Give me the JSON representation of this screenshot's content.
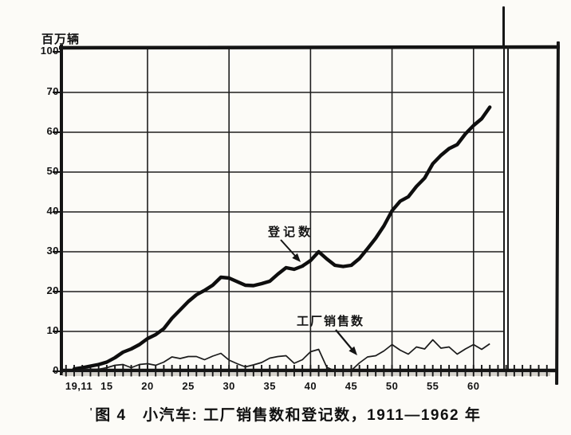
{
  "page": {
    "unit_label": "百万辆",
    "caption_tick": "'",
    "caption": "图 4　小汽车: 工厂销售数和登记数，1911—1962 年"
  },
  "chart_data": {
    "type": "line",
    "title": "小汽车: 工厂销售数和登记数，1911—1962 年",
    "ylabel": "百万辆",
    "xlabel": "",
    "grid": true,
    "legend_position": "inline-annotations",
    "ylim": [
      0,
      100
    ],
    "y_scale_break_above": 70,
    "x": [
      1911,
      1912,
      1913,
      1914,
      1915,
      1916,
      1917,
      1918,
      1919,
      1920,
      1921,
      1922,
      1923,
      1924,
      1925,
      1926,
      1927,
      1928,
      1929,
      1930,
      1931,
      1932,
      1933,
      1934,
      1935,
      1936,
      1937,
      1938,
      1939,
      1940,
      1941,
      1942,
      1943,
      1944,
      1945,
      1946,
      1947,
      1948,
      1949,
      1950,
      1951,
      1952,
      1953,
      1954,
      1955,
      1956,
      1957,
      1958,
      1959,
      1960,
      1961,
      1962
    ],
    "series": [
      {
        "name": "登记数",
        "style": "thick",
        "values": [
          0.6,
          0.9,
          1.3,
          1.7,
          2.3,
          3.4,
          4.8,
          5.6,
          6.7,
          8.2,
          9.2,
          10.7,
          13.3,
          15.4,
          17.5,
          19.2,
          20.3,
          21.6,
          23.6,
          23.4,
          22.5,
          21.6,
          21.5,
          22.0,
          22.6,
          24.4,
          26.0,
          25.6,
          26.4,
          27.8,
          30.0,
          28.2,
          26.6,
          26.3,
          26.6,
          28.3,
          30.8,
          33.4,
          36.5,
          40.3,
          42.7,
          43.8,
          46.4,
          48.5,
          52.1,
          54.2,
          55.9,
          56.9,
          59.6,
          61.7,
          63.4,
          66.3
        ]
      },
      {
        "name": "工厂销售数",
        "style": "thin",
        "values": [
          0.2,
          0.4,
          0.5,
          0.5,
          0.9,
          1.5,
          1.7,
          0.9,
          1.7,
          1.9,
          1.5,
          2.3,
          3.6,
          3.2,
          3.7,
          3.7,
          2.9,
          3.8,
          4.5,
          2.8,
          1.9,
          1.1,
          1.6,
          2.2,
          3.3,
          3.7,
          3.9,
          2.0,
          2.9,
          4.9,
          5.5,
          1.0,
          0.1,
          0.1,
          0.2,
          2.1,
          3.6,
          3.9,
          5.1,
          6.7,
          5.3,
          4.3,
          6.1,
          5.6,
          7.9,
          5.8,
          6.1,
          4.3,
          5.6,
          6.7,
          5.5,
          6.9
        ]
      }
    ],
    "annotations": [
      {
        "text": "登记数",
        "points_to_series": "登记数"
      },
      {
        "text": "工厂销售数",
        "points_to_series": "工厂销售数"
      }
    ],
    "y_axis": {
      "tick_labels": [
        "100",
        "70",
        "60",
        "50",
        "40",
        "30",
        "20",
        "10",
        "0"
      ],
      "tick_values": [
        100,
        70,
        60,
        50,
        40,
        30,
        20,
        10,
        0
      ]
    },
    "x_axis": {
      "tick_labels": [
        "19,11",
        "15",
        "20",
        "25",
        "30",
        "35",
        "40",
        "45",
        "50",
        "55",
        "60"
      ],
      "tick_years": [
        1911,
        1915,
        1920,
        1925,
        1930,
        1935,
        1940,
        1945,
        1950,
        1955,
        1960
      ],
      "minor_tick_every_years": 1,
      "decade_gridlines": [
        1920,
        1930,
        1940,
        1950,
        1960
      ]
    }
  }
}
